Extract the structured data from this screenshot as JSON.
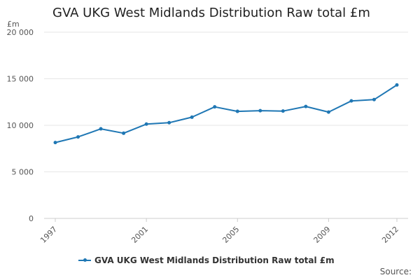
{
  "page": {
    "title": "GVA UKG West Midlands Distribution Raw total £m",
    "source_label": "Source:"
  },
  "chart_data": {
    "type": "line",
    "title": "GVA UKG West Midlands Distribution Raw total £m",
    "ylabel": "£m",
    "xlabel": "",
    "x": [
      1997,
      1998,
      1999,
      2000,
      2001,
      2002,
      2003,
      2004,
      2005,
      2006,
      2007,
      2008,
      2009,
      2010,
      2011,
      2012
    ],
    "xticks": [
      1997,
      2001,
      2005,
      2009,
      2012
    ],
    "xtick_labels": [
      "1997",
      "2001",
      "2005",
      "2009",
      "2012"
    ],
    "ylim": [
      0,
      20000
    ],
    "yticks": [
      0,
      5000,
      10000,
      15000,
      20000
    ],
    "ytick_labels": [
      "0",
      "5 000",
      "10 000",
      "15 000",
      "20 000"
    ],
    "grid": true,
    "legend_position": "bottom",
    "series": [
      {
        "name": "GVA UKG West Midlands Distribution Raw total £m",
        "color": "#1f77b4",
        "values": [
          8150,
          8750,
          9620,
          9150,
          10130,
          10280,
          10870,
          11980,
          11500,
          11570,
          11530,
          12020,
          11420,
          12620,
          12760,
          14330
        ]
      }
    ]
  }
}
